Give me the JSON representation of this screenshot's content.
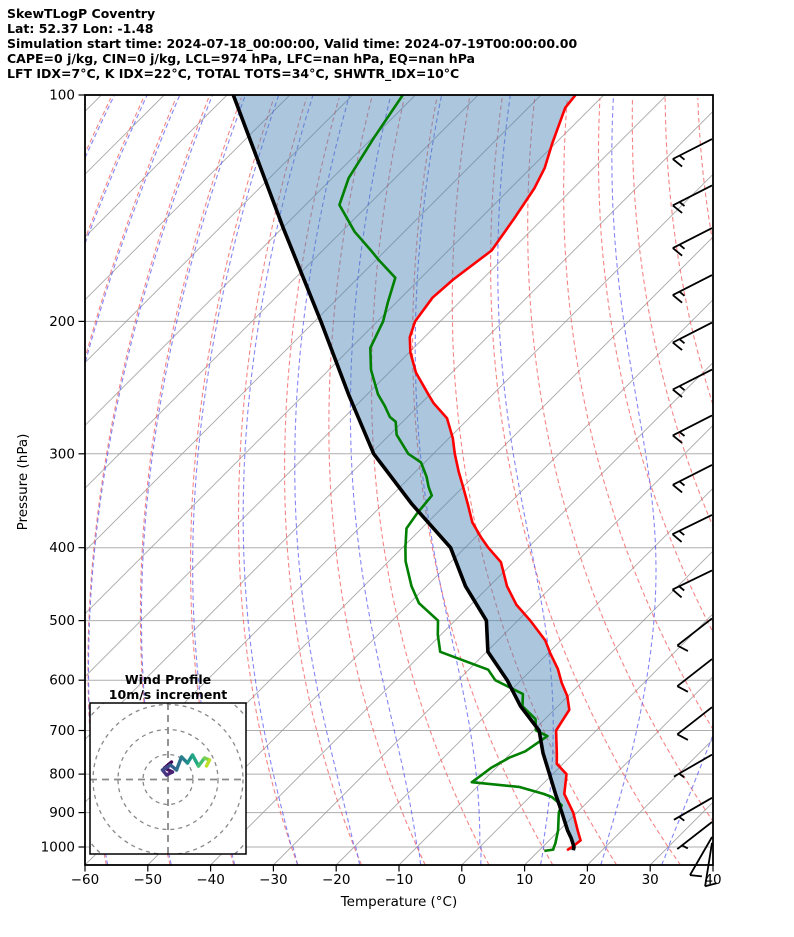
{
  "header": {
    "lines": [
      "SkewTLogP Coventry",
      "Lat: 52.37    Lon: -1.48",
      "Simulation start time: 2024-07-18_00:00:00, Valid time: 2024-07-19T00:00:00.00",
      "CAPE=0 j/kg, CIN=0 j/kg, LCL=974 hPa, LFC=nan hPa, EQ=nan hPa",
      "LFT IDX=7°C, K IDX=22°C, TOTAL TOTS=34°C, SHWTR_IDX=10°C"
    ]
  },
  "chart_data": {
    "type": "line",
    "subtype": "skew-t log-p sounding",
    "title": "SkewTLogP Coventry",
    "xlabel": "Temperature (°C)",
    "ylabel": "Pressure (hPa)",
    "temp_range": [
      -60,
      40
    ],
    "pressure_range": [
      100,
      1057
    ],
    "grid": true,
    "x_tick_values": [
      -60,
      -50,
      -40,
      -30,
      -20,
      -10,
      0,
      10,
      20,
      30,
      40
    ],
    "x_tick_labels": [
      "−60",
      "−50",
      "−40",
      "−30",
      "−20",
      "−10",
      "0",
      "10",
      "20",
      "30",
      "40"
    ],
    "y_tick_values": [
      100,
      200,
      300,
      400,
      500,
      600,
      700,
      800,
      900,
      1000
    ],
    "y_tick_labels": [
      "100",
      "200",
      "300",
      "400",
      "500",
      "600",
      "700",
      "800",
      "900",
      "1000"
    ],
    "isotherms": {
      "min": -180,
      "max": 40,
      "step": 10
    },
    "dry_adiabats_thetaC": [
      -100,
      -90,
      -80,
      -70,
      -60,
      -50,
      -40,
      -30,
      -20,
      -10,
      0,
      10,
      20,
      30,
      40,
      50,
      60,
      70,
      80,
      90,
      100
    ],
    "moist_adiabats_startC": [
      -100,
      -90,
      -80,
      -70,
      -60,
      -50,
      -40,
      -30,
      -20,
      -10,
      0,
      10,
      20,
      30,
      40
    ],
    "series": [
      {
        "name": "temperature",
        "units": {
          "p": "hPa",
          "t": "degC"
        },
        "points": [
          [
            100,
            -104.5
          ],
          [
            104,
            -104.1
          ],
          [
            116,
            -100.5
          ],
          [
            125,
            -97.8
          ],
          [
            133,
            -96.2
          ],
          [
            146,
            -94.6
          ],
          [
            161,
            -93.1
          ],
          [
            176,
            -94.6
          ],
          [
            186,
            -95.0
          ],
          [
            200,
            -94.0
          ],
          [
            210,
            -92.3
          ],
          [
            220,
            -89.8
          ],
          [
            234,
            -85.7
          ],
          [
            250,
            -80.3
          ],
          [
            257,
            -78.0
          ],
          [
            269,
            -73.5
          ],
          [
            286,
            -69.4
          ],
          [
            300,
            -66.6
          ],
          [
            317,
            -63.1
          ],
          [
            332,
            -60.0
          ],
          [
            350,
            -56.5
          ],
          [
            370,
            -52.9
          ],
          [
            388,
            -49.0
          ],
          [
            400,
            -46.3
          ],
          [
            418,
            -42.0
          ],
          [
            450,
            -37.2
          ],
          [
            476,
            -32.8
          ],
          [
            500,
            -28.0
          ],
          [
            531,
            -22.5
          ],
          [
            552,
            -19.7
          ],
          [
            580,
            -15.9
          ],
          [
            605,
            -13.1
          ],
          [
            630,
            -10.1
          ],
          [
            657,
            -7.6
          ],
          [
            700,
            -6.4
          ],
          [
            750,
            -2.7
          ],
          [
            775,
            -1.0
          ],
          [
            800,
            2.2
          ],
          [
            850,
            5.0
          ],
          [
            900,
            9.4
          ],
          [
            950,
            12.9
          ],
          [
            980,
            15.0
          ],
          [
            1000,
            14.7
          ],
          [
            1010,
            14.4
          ]
        ]
      },
      {
        "name": "dewpoint",
        "units": {
          "p": "hPa",
          "t": "degC"
        },
        "points": [
          [
            100,
            -132.0
          ],
          [
            114,
            -129.8
          ],
          [
            129,
            -127.4
          ],
          [
            140,
            -124.6
          ],
          [
            152,
            -117.9
          ],
          [
            161,
            -112.3
          ],
          [
            166,
            -109.4
          ],
          [
            175,
            -104.1
          ],
          [
            189,
            -101.3
          ],
          [
            200,
            -99.1
          ],
          [
            217,
            -96.9
          ],
          [
            232,
            -93.3
          ],
          [
            250,
            -88.3
          ],
          [
            259,
            -85.4
          ],
          [
            268,
            -82.8
          ],
          [
            272,
            -81.1
          ],
          [
            283,
            -78.9
          ],
          [
            300,
            -74.0
          ],
          [
            308,
            -70.6
          ],
          [
            322,
            -67.4
          ],
          [
            332,
            -65.5
          ],
          [
            341,
            -63.6
          ],
          [
            360,
            -63.1
          ],
          [
            377,
            -62.4
          ],
          [
            400,
            -59.5
          ],
          [
            417,
            -57.3
          ],
          [
            450,
            -52.4
          ],
          [
            474,
            -48.5
          ],
          [
            500,
            -42.7
          ],
          [
            522,
            -40.5
          ],
          [
            550,
            -37.4
          ],
          [
            581,
            -26.9
          ],
          [
            600,
            -24.1
          ],
          [
            626,
            -17.5
          ],
          [
            650,
            -15.6
          ],
          [
            676,
            -11.5
          ],
          [
            700,
            -9.6
          ],
          [
            712,
            -6.9
          ],
          [
            746,
            -8.0
          ],
          [
            760,
            -9.5
          ],
          [
            785,
            -10.8
          ],
          [
            807,
            -11.3
          ],
          [
            820,
            -11.6
          ],
          [
            832,
            -3.3
          ],
          [
            850,
            1.7
          ],
          [
            858,
            3.5
          ],
          [
            880,
            6.4
          ],
          [
            900,
            7.1
          ],
          [
            950,
            9.8
          ],
          [
            990,
            11.5
          ],
          [
            1000,
            11.8
          ],
          [
            1008,
            12.1
          ],
          [
            1012,
            10.9
          ]
        ]
      },
      {
        "name": "parcel",
        "units": {
          "p": "hPa",
          "t": "degC"
        },
        "points": [
          [
            100,
            -159.0
          ],
          [
            150,
            -130.0
          ],
          [
            200,
            -109.0
          ],
          [
            250,
            -93.0
          ],
          [
            300,
            -79.5
          ],
          [
            350,
            -65.4
          ],
          [
            400,
            -52.3
          ],
          [
            450,
            -43.8
          ],
          [
            500,
            -35.0
          ],
          [
            550,
            -29.8
          ],
          [
            600,
            -22.2
          ],
          [
            650,
            -15.9
          ],
          [
            700,
            -9.1
          ],
          [
            750,
            -4.9
          ],
          [
            800,
            -0.5
          ],
          [
            850,
            3.6
          ],
          [
            900,
            7.6
          ],
          [
            950,
            11.3
          ],
          [
            974,
            13.2
          ],
          [
            1000,
            15.0
          ],
          [
            1010,
            15.4
          ]
        ]
      }
    ],
    "shaded_region": {
      "between": [
        "parcel",
        "temperature"
      ],
      "meaning": "negative buoyancy area"
    },
    "wind_barbs": [
      {
        "p": 118,
        "speed_ms": 15,
        "angle_deg": 27
      },
      {
        "p": 136,
        "speed_ms": 15,
        "angle_deg": 27
      },
      {
        "p": 155,
        "speed_ms": 15,
        "angle_deg": 27
      },
      {
        "p": 179,
        "speed_ms": 15,
        "angle_deg": 27
      },
      {
        "p": 207,
        "speed_ms": 15,
        "angle_deg": 27
      },
      {
        "p": 239,
        "speed_ms": 15,
        "angle_deg": 27
      },
      {
        "p": 275,
        "speed_ms": 15,
        "angle_deg": 27
      },
      {
        "p": 320,
        "speed_ms": 15,
        "angle_deg": 27
      },
      {
        "p": 373,
        "speed_ms": 15,
        "angle_deg": 26
      },
      {
        "p": 442,
        "speed_ms": 15,
        "angle_deg": 26
      },
      {
        "p": 512,
        "speed_ms": 10,
        "angle_deg": 38
      },
      {
        "p": 580,
        "speed_ms": 10,
        "angle_deg": 38
      },
      {
        "p": 672,
        "speed_ms": 10,
        "angle_deg": 38
      },
      {
        "p": 777,
        "speed_ms": 5,
        "angle_deg": 30
      },
      {
        "p": 887,
        "speed_ms": 5,
        "angle_deg": 30
      },
      {
        "p": 955,
        "speed_ms": 5,
        "angle_deg": 38
      },
      {
        "p": 1000,
        "speed_ms": 10,
        "angle_deg": 60
      },
      {
        "p": 1018,
        "speed_ms": 10,
        "angle_deg": 81
      }
    ],
    "colors": {
      "temperature": "#ff0000",
      "dewpoint": "#007f00",
      "parcel": "#000000",
      "fill": "#4682b4",
      "fill_opacity": 0.45,
      "isotherm": "#9a9a9a",
      "pressure_grid": "#9a9a9a",
      "dry_adiabat": "#f25c5c",
      "moist_adiabat": "#5c5cf2",
      "barb": "#000000",
      "frame": "#000000"
    }
  },
  "hodograph": {
    "title": "Wind Profile",
    "subtitle": "10m/s increment",
    "ring_interval_ms": 10,
    "rings_ms": [
      10,
      20,
      30,
      40
    ],
    "grid_color": "#888888",
    "trace_uv_ms": [
      [
        1.4,
        7.0
      ],
      [
        -1.4,
        4.6
      ],
      [
        1.8,
        3.0
      ],
      [
        -0.6,
        1.8
      ],
      [
        -2.2,
        3.8
      ],
      [
        1.0,
        5.8
      ],
      [
        3.4,
        3.8
      ],
      [
        5.4,
        9.0
      ],
      [
        7.8,
        6.6
      ],
      [
        9.8,
        9.8
      ],
      [
        12.2,
        5.4
      ],
      [
        14.6,
        8.6
      ],
      [
        16.6,
        7.8
      ],
      [
        15.4,
        5.4
      ]
    ],
    "trace_colors": [
      "#440154",
      "#471365",
      "#482475",
      "#46327e",
      "#3f4889",
      "#365c8d",
      "#2e6f8e",
      "#277f8e",
      "#21918c",
      "#22a884",
      "#44bf70",
      "#7ad151",
      "#bddf26",
      "#fde725"
    ]
  }
}
